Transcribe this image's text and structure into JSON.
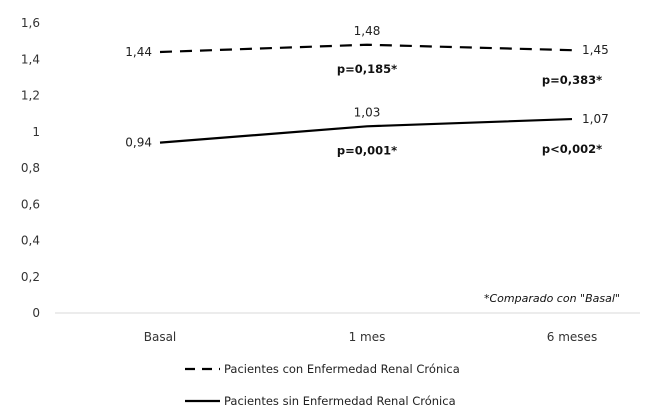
{
  "chart_data": {
    "type": "line",
    "title": "",
    "xlabel": "",
    "ylabel": "",
    "categories": [
      "Basal",
      "1 mes",
      "6 meses"
    ],
    "ylim": [
      0,
      1.6
    ],
    "yticks": [
      "0",
      "0,2",
      "0,4",
      "0,6",
      "0,8",
      "1",
      "1,2",
      "1,4",
      "1,6"
    ],
    "grid": false,
    "legend_position": "bottom",
    "series": [
      {
        "name": "Pacientes con Enfermedad Renal Crónica",
        "style": "dashed",
        "values": [
          1.44,
          1.48,
          1.45
        ],
        "value_labels": [
          "1,44",
          "1,48",
          "1,45"
        ],
        "p_values": [
          "",
          "p=0,185*",
          "p=0,383*"
        ]
      },
      {
        "name": "Pacientes sin Enfermedad Renal Crónica",
        "style": "solid",
        "values": [
          0.94,
          1.03,
          1.07
        ],
        "value_labels": [
          "0,94",
          "1,03",
          "1,07"
        ],
        "p_values": [
          "",
          "p=0,001*",
          "p<0,002*"
        ]
      }
    ],
    "annotation": "*Comparado con \"Basal\"",
    "colors": {
      "line": "#000000",
      "axis": "#d9d9d9",
      "text": "#333333"
    }
  }
}
